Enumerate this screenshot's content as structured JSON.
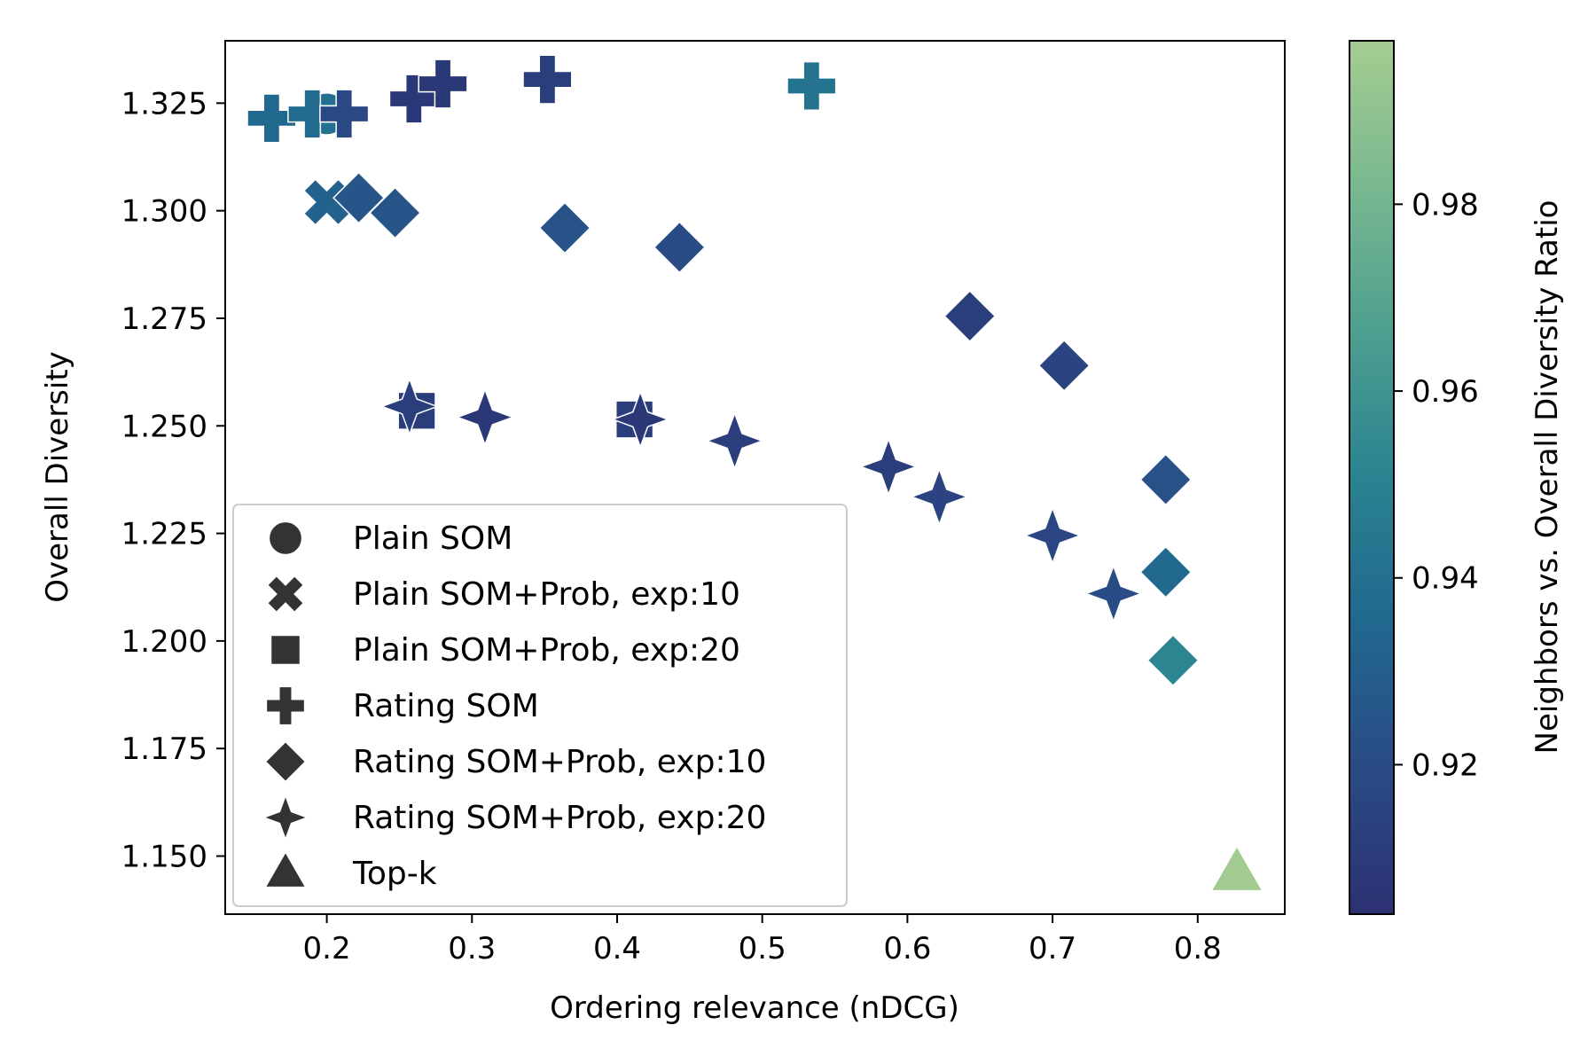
{
  "chart_data": {
    "type": "scatter",
    "xlabel": "Ordering relevance (nDCG)",
    "ylabel": "Overall Diversity",
    "xlim": [
      0.13,
      0.86
    ],
    "ylim": [
      1.1365,
      1.3395
    ],
    "xticks": [
      0.2,
      0.3,
      0.4,
      0.5,
      0.6,
      0.7,
      0.8
    ],
    "xtick_labels": [
      "0.2",
      "0.3",
      "0.4",
      "0.5",
      "0.6",
      "0.7",
      "0.8"
    ],
    "yticks": [
      1.15,
      1.175,
      1.2,
      1.225,
      1.25,
      1.275,
      1.3,
      1.325
    ],
    "ytick_labels": [
      "1.150",
      "1.175",
      "1.200",
      "1.225",
      "1.250",
      "1.275",
      "1.300",
      "1.325"
    ],
    "grid": false,
    "legend_position": "lower-left",
    "colorbar": {
      "label": "Neighbors vs. Overall Diversity Ratio",
      "range": [
        0.904,
        0.9975
      ],
      "ticks": [
        0.92,
        0.94,
        0.96,
        0.98
      ],
      "tick_labels": [
        "0.92",
        "0.94",
        "0.96",
        "0.98"
      ],
      "colormap": "crest",
      "stops": [
        "#2c3172",
        "#2a4b86",
        "#21688f",
        "#2a8390",
        "#4d9f8f",
        "#79b890",
        "#a5cd90"
      ]
    },
    "series": [
      {
        "name": "Plain SOM",
        "marker": "circle",
        "points": [
          {
            "x": 0.2,
            "y": 1.3225,
            "c": 0.94
          }
        ]
      },
      {
        "name": "Plain SOM+Prob, exp:10",
        "marker": "x",
        "points": [
          {
            "x": 0.2,
            "y": 1.302,
            "c": 0.932
          }
        ]
      },
      {
        "name": "Plain SOM+Prob, exp:20",
        "marker": "square",
        "points": [
          {
            "x": 0.262,
            "y": 1.2535,
            "c": 0.912
          },
          {
            "x": 0.412,
            "y": 1.2515,
            "c": 0.912
          }
        ]
      },
      {
        "name": "Rating SOM",
        "marker": "plus",
        "points": [
          {
            "x": 0.162,
            "y": 1.3215,
            "c": 0.935
          },
          {
            "x": 0.19,
            "y": 1.3225,
            "c": 0.937
          },
          {
            "x": 0.212,
            "y": 1.3225,
            "c": 0.918
          },
          {
            "x": 0.26,
            "y": 1.326,
            "c": 0.908
          },
          {
            "x": 0.28,
            "y": 1.3295,
            "c": 0.908
          },
          {
            "x": 0.352,
            "y": 1.3305,
            "c": 0.912
          },
          {
            "x": 0.534,
            "y": 1.329,
            "c": 0.942
          }
        ]
      },
      {
        "name": "Rating SOM+Prob, exp:10",
        "marker": "diamond",
        "points": [
          {
            "x": 0.222,
            "y": 1.303,
            "c": 0.925
          },
          {
            "x": 0.247,
            "y": 1.2995,
            "c": 0.925
          },
          {
            "x": 0.364,
            "y": 1.296,
            "c": 0.924
          },
          {
            "x": 0.443,
            "y": 1.2915,
            "c": 0.92
          },
          {
            "x": 0.643,
            "y": 1.2755,
            "c": 0.912
          },
          {
            "x": 0.708,
            "y": 1.264,
            "c": 0.915
          },
          {
            "x": 0.778,
            "y": 1.2375,
            "c": 0.923
          },
          {
            "x": 0.778,
            "y": 1.216,
            "c": 0.936
          },
          {
            "x": 0.783,
            "y": 1.1955,
            "c": 0.952
          }
        ]
      },
      {
        "name": "Rating SOM+Prob, exp:20",
        "marker": "star4",
        "points": [
          {
            "x": 0.257,
            "y": 1.2545,
            "c": 0.912
          },
          {
            "x": 0.309,
            "y": 1.252,
            "c": 0.908
          },
          {
            "x": 0.416,
            "y": 1.2515,
            "c": 0.908
          },
          {
            "x": 0.481,
            "y": 1.2465,
            "c": 0.912
          },
          {
            "x": 0.587,
            "y": 1.2405,
            "c": 0.912
          },
          {
            "x": 0.622,
            "y": 1.2335,
            "c": 0.915
          },
          {
            "x": 0.7,
            "y": 1.2245,
            "c": 0.916
          },
          {
            "x": 0.742,
            "y": 1.211,
            "c": 0.92
          }
        ]
      },
      {
        "name": "Top-k",
        "marker": "triangle",
        "points": [
          {
            "x": 0.827,
            "y": 1.146,
            "c": 0.996
          }
        ]
      }
    ]
  }
}
